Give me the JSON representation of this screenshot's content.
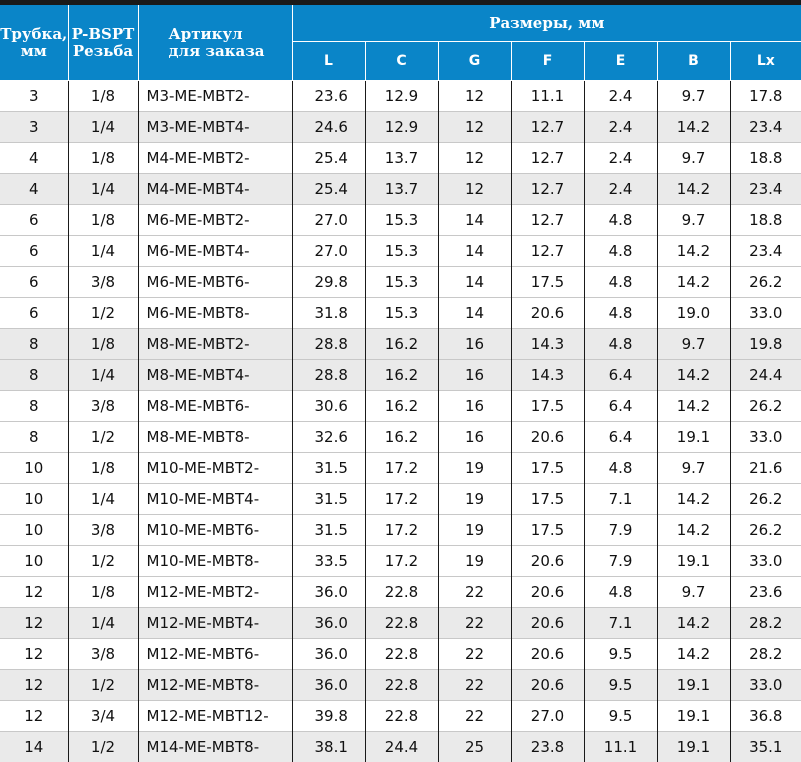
{
  "header": {
    "tube_line1": "Трубка,",
    "tube_line2": "мм",
    "thread_line1": "P-BSPT",
    "thread_line2": "Резьба",
    "article_line1": "Артикул",
    "article_line2": "для заказа",
    "dimensions": "Размеры, мм",
    "dim_columns": [
      "L",
      "C",
      "G",
      "F",
      "E",
      "B",
      "Lx"
    ]
  },
  "colors": {
    "header_bg": "#0a85c8",
    "shade_row": "#eaeaea"
  },
  "rows": [
    [
      "3",
      "1/8",
      "M3-ME-MBT2-",
      "23.6",
      "12.9",
      "12",
      "11.1",
      "2.4",
      "9.7",
      "17.8"
    ],
    [
      "3",
      "1/4",
      "M3-ME-MBT4-",
      "24.6",
      "12.9",
      "12",
      "12.7",
      "2.4",
      "14.2",
      "23.4"
    ],
    [
      "4",
      "1/8",
      "M4-ME-MBT2-",
      "25.4",
      "13.7",
      "12",
      "12.7",
      "2.4",
      "9.7",
      "18.8"
    ],
    [
      "4",
      "1/4",
      "M4-ME-MBT4-",
      "25.4",
      "13.7",
      "12",
      "12.7",
      "2.4",
      "14.2",
      "23.4"
    ],
    [
      "6",
      "1/8",
      "M6-ME-MBT2-",
      "27.0",
      "15.3",
      "14",
      "12.7",
      "4.8",
      "9.7",
      "18.8"
    ],
    [
      "6",
      "1/4",
      "M6-ME-MBT4-",
      "27.0",
      "15.3",
      "14",
      "12.7",
      "4.8",
      "14.2",
      "23.4"
    ],
    [
      "6",
      "3/8",
      "M6-ME-MBT6-",
      "29.8",
      "15.3",
      "14",
      "17.5",
      "4.8",
      "14.2",
      "26.2"
    ],
    [
      "6",
      "1/2",
      "M6-ME-MBT8-",
      "31.8",
      "15.3",
      "14",
      "20.6",
      "4.8",
      "19.0",
      "33.0"
    ],
    [
      "8",
      "1/8",
      "M8-ME-MBT2-",
      "28.8",
      "16.2",
      "16",
      "14.3",
      "4.8",
      "9.7",
      "19.8"
    ],
    [
      "8",
      "1/4",
      "M8-ME-MBT4-",
      "28.8",
      "16.2",
      "16",
      "14.3",
      "6.4",
      "14.2",
      "24.4"
    ],
    [
      "8",
      "3/8",
      "M8-ME-MBT6-",
      "30.6",
      "16.2",
      "16",
      "17.5",
      "6.4",
      "14.2",
      "26.2"
    ],
    [
      "8",
      "1/2",
      "M8-ME-MBT8-",
      "32.6",
      "16.2",
      "16",
      "20.6",
      "6.4",
      "19.1",
      "33.0"
    ],
    [
      "10",
      "1/8",
      "M10-ME-MBT2-",
      "31.5",
      "17.2",
      "19",
      "17.5",
      "4.8",
      "9.7",
      "21.6"
    ],
    [
      "10",
      "1/4",
      "M10-ME-MBT4-",
      "31.5",
      "17.2",
      "19",
      "17.5",
      "7.1",
      "14.2",
      "26.2"
    ],
    [
      "10",
      "3/8",
      "M10-ME-MBT6-",
      "31.5",
      "17.2",
      "19",
      "17.5",
      "7.9",
      "14.2",
      "26.2"
    ],
    [
      "10",
      "1/2",
      "M10-ME-MBT8-",
      "33.5",
      "17.2",
      "19",
      "20.6",
      "7.9",
      "19.1",
      "33.0"
    ],
    [
      "12",
      "1/8",
      "M12-ME-MBT2-",
      "36.0",
      "22.8",
      "22",
      "20.6",
      "4.8",
      "9.7",
      "23.6"
    ],
    [
      "12",
      "1/4",
      "M12-ME-MBT4-",
      "36.0",
      "22.8",
      "22",
      "20.6",
      "7.1",
      "14.2",
      "28.2"
    ],
    [
      "12",
      "3/8",
      "M12-ME-MBT6-",
      "36.0",
      "22.8",
      "22",
      "20.6",
      "9.5",
      "14.2",
      "28.2"
    ],
    [
      "12",
      "1/2",
      "M12-ME-MBT8-",
      "36.0",
      "22.8",
      "22",
      "20.6",
      "9.5",
      "19.1",
      "33.0"
    ],
    [
      "12",
      "3/4",
      "M12-ME-MBT12-",
      "39.8",
      "22.8",
      "22",
      "27.0",
      "9.5",
      "19.1",
      "36.8"
    ],
    [
      "14",
      "1/2",
      "M14-ME-MBT8-",
      "38.1",
      "24.4",
      "25",
      "23.8",
      "11.1",
      "19.1",
      "35.1"
    ]
  ]
}
